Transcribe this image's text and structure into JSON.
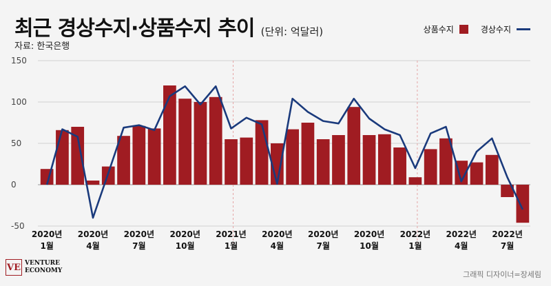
{
  "header": {
    "title": "최근 경상수지·상품수지 추이",
    "unit": "(단위: 억달러)",
    "source": "자료: 한국은행"
  },
  "footer": {
    "logo_line1": "VENTURE",
    "logo_line2": "ECONOMY",
    "credit": "그래픽 디자이너=장세림"
  },
  "colors": {
    "bar": "#a01c22",
    "line": "#1a3a7c",
    "background": "#f4f4f4"
  },
  "chart_data": {
    "type": "bar",
    "ylim": [
      -50,
      150
    ],
    "yticks": [
      -50,
      0,
      50,
      100,
      150
    ],
    "grid": true,
    "legend_position": "top-right",
    "tick_labels": [
      {
        "index": 0,
        "line1": "2020년",
        "line2": "1월"
      },
      {
        "index": 3,
        "line1": "2020년",
        "line2": "4월"
      },
      {
        "index": 6,
        "line1": "2020년",
        "line2": "7월"
      },
      {
        "index": 9,
        "line1": "2020년",
        "line2": "10월"
      },
      {
        "index": 12,
        "line1": "2021년",
        "line2": "1월"
      },
      {
        "index": 15,
        "line1": "2020년",
        "line2": "4월"
      },
      {
        "index": 18,
        "line1": "2020년",
        "line2": "7월"
      },
      {
        "index": 21,
        "line1": "2020년",
        "line2": "10월"
      },
      {
        "index": 24,
        "line1": "2022년",
        "line2": "1월"
      },
      {
        "index": 27,
        "line1": "2022년",
        "line2": "4월"
      },
      {
        "index": 30,
        "line1": "2022년",
        "line2": "7월"
      }
    ],
    "year_dividers": [
      12,
      24
    ],
    "series": [
      {
        "name": "상품수지",
        "kind": "bar",
        "values": [
          19,
          66,
          70,
          5,
          22,
          59,
          71,
          68,
          120,
          104,
          100,
          106,
          55,
          57,
          78,
          50,
          67,
          75,
          55,
          60,
          94,
          60,
          61,
          45,
          9,
          43,
          56,
          29,
          27,
          36,
          -15,
          -46
        ]
      },
      {
        "name": "경상수지",
        "kind": "line",
        "values": [
          0,
          67,
          58,
          -40,
          14,
          69,
          72,
          66,
          107,
          119,
          97,
          119,
          68,
          81,
          73,
          1,
          104,
          88,
          77,
          74,
          104,
          80,
          67,
          60,
          20,
          62,
          70,
          4,
          40,
          56,
          9,
          -30
        ]
      }
    ]
  }
}
